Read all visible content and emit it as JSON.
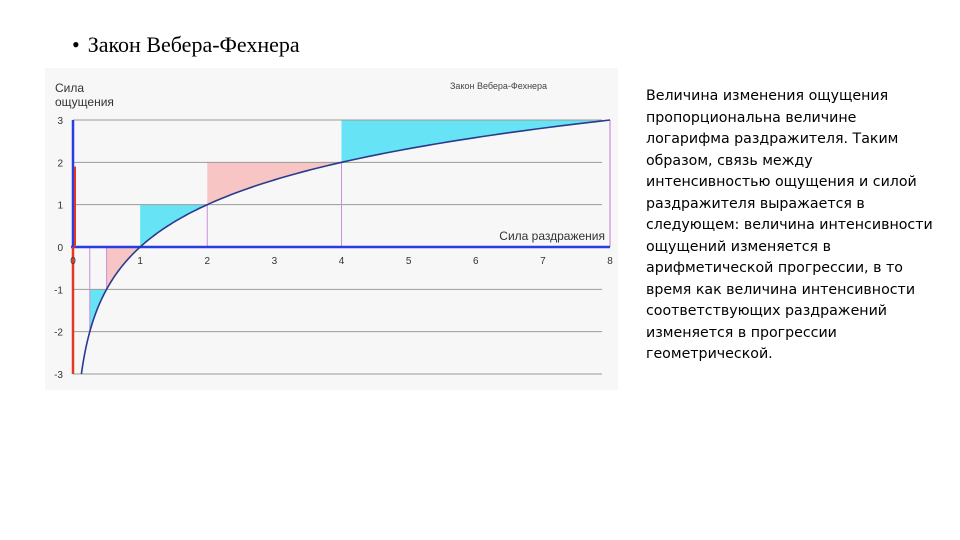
{
  "slide": {
    "bullet": "•",
    "title": "Закон Вебера-Фехнера",
    "description": "Величина изменения ощущения пропорциональна величине логарифма раздражителя. Таким образом, связь между интенсивностью ощущения и силой раздражителя выражается в следующем: величина интенсивности ощущений изменяется в арифметической прогрессии, в то время как величина интенсивности соответствующих раздражений изменяется в прогрессии геометрической."
  },
  "chart_data": {
    "type": "area",
    "title": "Закон Вебера-Фехнера",
    "ylabel_line1": "Сила",
    "ylabel_line2": "ощущения",
    "xlabel": "Сила раздражения",
    "xlim": [
      0,
      8
    ],
    "ylim": [
      -3,
      3
    ],
    "x_ticks": [
      0,
      1,
      2,
      3,
      4,
      5,
      6,
      7,
      8
    ],
    "y_ticks": [
      3,
      2,
      1,
      0,
      -1,
      -2,
      -3
    ],
    "grid": true,
    "series": [
      {
        "formula": "y = log2(x)",
        "x": [
          0.125,
          0.25,
          0.5,
          1,
          2,
          4,
          8
        ],
        "y": [
          -3,
          -2,
          -1,
          0,
          1,
          2,
          3
        ]
      }
    ],
    "intervals": [
      {
        "x0": 0.25,
        "x1": 0.5,
        "fill": "#66e3f4"
      },
      {
        "x0": 0.5,
        "x1": 1,
        "fill": "#f7c6c4"
      },
      {
        "x0": 1,
        "x1": 2,
        "fill": "#66e3f4"
      },
      {
        "x0": 2,
        "x1": 4,
        "fill": "#f7c6c4"
      },
      {
        "x0": 4,
        "x1": 8,
        "fill": "#66e3f4"
      }
    ],
    "colors": {
      "curve": "#2a3a8e",
      "x_axis": "#2a3ee0",
      "y_axis": "#e03a24",
      "cyan": "#66e3f4",
      "pink": "#f7c6c4",
      "grid": "#9a9a9a",
      "guide": "#c98fdc"
    }
  }
}
